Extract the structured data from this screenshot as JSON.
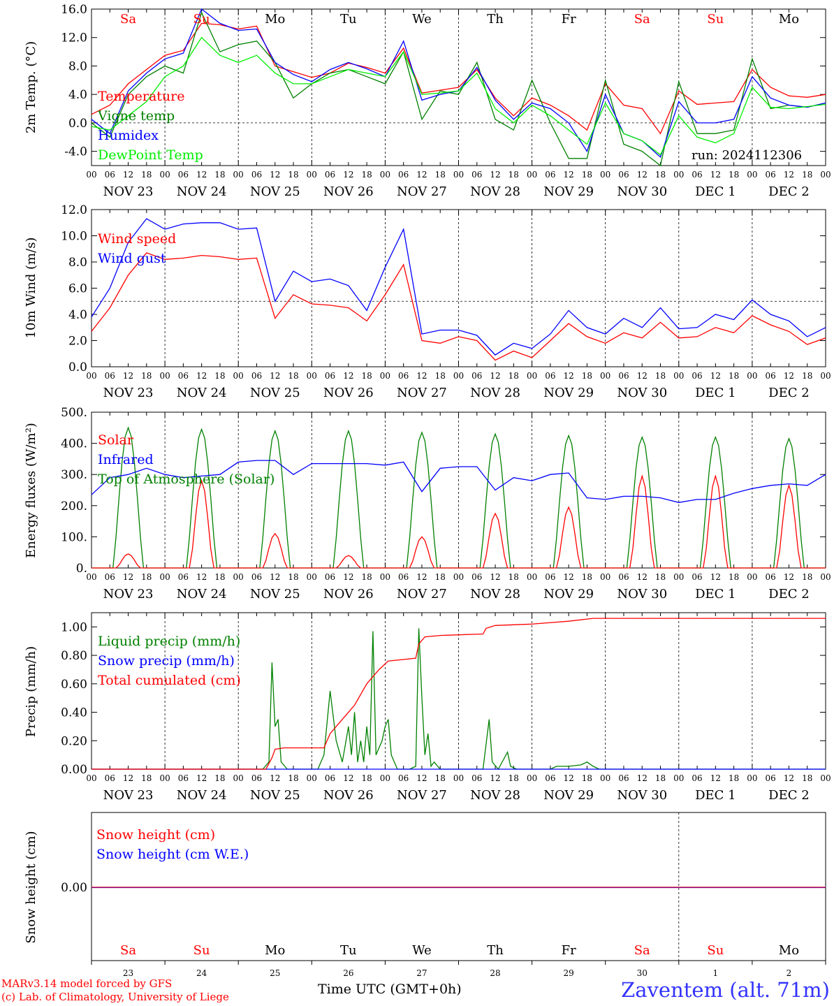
{
  "chart_data": [
    {
      "type": "line",
      "ylabel": "2m Temp. (°C)",
      "yticks": [
        "16.0",
        "12.0",
        "8.0",
        "4.0",
        "0.0",
        "-4.0"
      ],
      "ylim": [
        -6,
        16
      ],
      "ref_line": 0,
      "legend": [
        "Temperature",
        "Vigne temp",
        "Humidex",
        "DewPoint Temp"
      ],
      "annotation": "run: 2024112306",
      "day_labels": [
        "Sa",
        "Su",
        "Mo",
        "Tu",
        "We",
        "Th",
        "Fr",
        "Sa",
        "Su",
        "Mo"
      ],
      "x_hours": [
        0,
        6,
        12,
        18,
        24,
        30,
        36,
        42,
        48,
        54,
        60,
        66,
        72,
        78,
        84,
        90,
        96,
        102,
        108,
        114,
        120,
        126,
        132,
        138,
        144,
        150,
        156,
        162,
        168,
        174,
        180,
        186,
        192,
        198,
        204,
        210,
        216,
        222,
        228,
        234,
        240
      ],
      "series": [
        {
          "name": "Temperature",
          "color": "#ff0000",
          "values": [
            1.2,
            2.5,
            5.5,
            7.5,
            9.5,
            10.2,
            14.0,
            13.8,
            13.2,
            13.6,
            8.0,
            7.2,
            6.4,
            7.0,
            8.4,
            7.8,
            7.0,
            10.5,
            4.2,
            4.6,
            5.0,
            7.5,
            3.5,
            1.0,
            3.5,
            2.5,
            1.0,
            -1.0,
            5.5,
            2.5,
            2.0,
            -1.5,
            4.5,
            2.6,
            2.8,
            3.0,
            7.5,
            5.0,
            3.8,
            3.6,
            4.0
          ]
        },
        {
          "name": "Vigne temp",
          "color": "#008000",
          "values": [
            0.0,
            -2.0,
            4.0,
            6.5,
            8.0,
            7.0,
            15.5,
            10.0,
            11.0,
            11.5,
            8.5,
            3.5,
            5.5,
            7.0,
            7.5,
            6.5,
            5.5,
            10.0,
            0.5,
            4.5,
            4.0,
            8.5,
            0.5,
            -1.0,
            6.0,
            0.0,
            -5.0,
            -5.0,
            6.0,
            -3.0,
            -4.0,
            -6.0,
            5.8,
            -1.5,
            -1.5,
            -1.0,
            9.0,
            2.0,
            2.5,
            2.2,
            2.8
          ]
        },
        {
          "name": "Humidex",
          "color": "#0000ff",
          "values": [
            0.5,
            -1.5,
            4.5,
            7.0,
            9.0,
            9.8,
            16.0,
            14.0,
            13.0,
            13.2,
            8.5,
            6.8,
            5.8,
            7.5,
            8.5,
            7.6,
            6.5,
            11.5,
            3.2,
            4.0,
            4.5,
            7.8,
            3.2,
            0.5,
            2.8,
            2.0,
            0.0,
            -4.0,
            4.0,
            -1.5,
            -2.5,
            -4.8,
            3.0,
            0.0,
            0.0,
            0.5,
            6.5,
            3.5,
            2.5,
            2.2,
            2.8
          ]
        },
        {
          "name": "DewPoint Temp",
          "color": "#00ee00",
          "values": [
            -0.5,
            -1.0,
            1.0,
            3.0,
            6.5,
            8.0,
            12.0,
            9.5,
            8.5,
            9.5,
            7.0,
            5.5,
            5.5,
            6.5,
            7.5,
            7.0,
            6.5,
            10.0,
            4.0,
            4.2,
            4.5,
            7.0,
            2.0,
            0.0,
            2.5,
            1.0,
            -1.0,
            -3.0,
            2.8,
            -1.5,
            -2.5,
            -4.5,
            1.0,
            -2.0,
            -2.8,
            -1.5,
            5.0,
            2.2,
            2.0,
            2.3,
            2.6
          ]
        }
      ]
    },
    {
      "type": "line",
      "ylabel": "10m Wind (m/s)",
      "yticks": [
        "12.0",
        "10.0",
        "8.0",
        "6.0",
        "4.0",
        "2.0",
        "0.0"
      ],
      "ylim": [
        0,
        12
      ],
      "ref_line": 5,
      "legend": [
        "Wind speed",
        "Wind gust"
      ],
      "x_hours": [
        0,
        6,
        12,
        18,
        24,
        30,
        36,
        42,
        48,
        54,
        60,
        66,
        72,
        78,
        84,
        90,
        96,
        102,
        108,
        114,
        120,
        126,
        132,
        138,
        144,
        150,
        156,
        162,
        168,
        174,
        180,
        186,
        192,
        198,
        204,
        210,
        216,
        222,
        228,
        234,
        240
      ],
      "series": [
        {
          "name": "Wind speed",
          "color": "#ff0000",
          "values": [
            2.7,
            4.5,
            7.0,
            8.7,
            8.2,
            8.3,
            8.5,
            8.4,
            8.2,
            8.3,
            3.7,
            5.5,
            4.8,
            4.7,
            4.5,
            3.5,
            5.5,
            7.8,
            2.0,
            1.8,
            2.3,
            2.0,
            0.5,
            1.2,
            0.7,
            2.0,
            3.3,
            2.3,
            1.8,
            2.6,
            2.2,
            3.4,
            2.2,
            2.3,
            3.0,
            2.6,
            3.9,
            3.2,
            2.7,
            1.7,
            2.2
          ]
        },
        {
          "name": "Wind gust",
          "color": "#0000ff",
          "values": [
            3.8,
            6.0,
            9.5,
            11.3,
            10.5,
            10.9,
            11.0,
            11.0,
            10.5,
            10.6,
            5.0,
            7.3,
            6.5,
            6.7,
            6.2,
            4.3,
            7.6,
            10.5,
            2.5,
            2.8,
            2.8,
            2.4,
            0.9,
            1.8,
            1.4,
            2.5,
            4.3,
            3.0,
            2.5,
            3.7,
            3.0,
            4.5,
            2.9,
            3.0,
            4.0,
            3.6,
            5.1,
            4.0,
            3.5,
            2.3,
            3.0
          ]
        }
      ]
    },
    {
      "type": "line",
      "ylabel": "Energy fluxes (W/m²)",
      "yticks": [
        "500.",
        "400.",
        "300.",
        "200.",
        "100.",
        "0."
      ],
      "ylim": [
        0,
        500
      ],
      "legend": [
        "Solar",
        "Infrared",
        "Top of Atmosphere (Solar)"
      ],
      "days": 10,
      "daily_solar_peak": [
        45,
        280,
        110,
        40,
        100,
        175,
        195,
        295,
        295,
        265
      ],
      "daily_toa_peak": [
        450,
        445,
        440,
        440,
        435,
        430,
        425,
        420,
        420,
        415
      ],
      "infrared": {
        "name": "Infrared",
        "color": "#0000ff",
        "x_hours": [
          0,
          6,
          12,
          18,
          24,
          30,
          36,
          42,
          48,
          54,
          60,
          66,
          72,
          78,
          84,
          90,
          96,
          102,
          108,
          114,
          120,
          126,
          132,
          138,
          144,
          150,
          156,
          162,
          168,
          174,
          180,
          186,
          192,
          198,
          204,
          210,
          216,
          222,
          228,
          234,
          240
        ],
        "values": [
          235,
          290,
          300,
          320,
          300,
          290,
          295,
          300,
          340,
          345,
          345,
          300,
          335,
          335,
          335,
          335,
          330,
          340,
          245,
          320,
          325,
          325,
          250,
          290,
          280,
          300,
          305,
          225,
          220,
          230,
          230,
          225,
          210,
          220,
          220,
          240,
          255,
          265,
          270,
          265,
          300
        ]
      },
      "series_colors": {
        "solar": "#ff0000",
        "toa": "#008000"
      }
    },
    {
      "type": "line",
      "ylabel": "Precip (mm/h)",
      "yticks": [
        "1.00",
        "0.80",
        "0.60",
        "0.40",
        "0.20",
        "0.00"
      ],
      "ylim": [
        0,
        1.1
      ],
      "legend": [
        "Liquid precip (mm/h)",
        "Snow precip (mm/h)",
        "Total cumulated (cm)"
      ],
      "liquid": {
        "name": "Liquid precip (mm/h)",
        "color": "#008000",
        "points": [
          [
            0,
            0
          ],
          [
            56,
            0
          ],
          [
            58,
            0.05
          ],
          [
            59,
            0.75
          ],
          [
            60,
            0.3
          ],
          [
            61,
            0.35
          ],
          [
            62,
            0.05
          ],
          [
            64,
            0
          ],
          [
            74,
            0
          ],
          [
            76,
            0.1
          ],
          [
            78,
            0.55
          ],
          [
            80,
            0.2
          ],
          [
            82,
            0.05
          ],
          [
            84,
            0.3
          ],
          [
            85,
            0.1
          ],
          [
            86,
            0.4
          ],
          [
            87,
            0.05
          ],
          [
            88,
            0.2
          ],
          [
            89,
            0.05
          ],
          [
            90,
            0.3
          ],
          [
            91,
            0.1
          ],
          [
            92,
            0.97
          ],
          [
            93,
            0.1
          ],
          [
            94,
            0.15
          ],
          [
            95,
            0.2
          ],
          [
            96,
            0.3
          ],
          [
            97,
            0.35
          ],
          [
            98,
            0.1
          ],
          [
            99,
            0.05
          ],
          [
            100,
            0.0
          ],
          [
            104,
            0.0
          ],
          [
            106,
            0.02
          ],
          [
            107,
            0.99
          ],
          [
            108,
            0.5
          ],
          [
            109,
            0.1
          ],
          [
            110,
            0.25
          ],
          [
            111,
            0.02
          ],
          [
            112,
            0.05
          ],
          [
            114,
            0.0
          ],
          [
            128,
            0.0
          ],
          [
            130,
            0.35
          ],
          [
            131,
            0.05
          ],
          [
            133,
            0.0
          ],
          [
            136,
            0.12
          ],
          [
            137,
            0.02
          ],
          [
            139,
            0.0
          ],
          [
            150,
            0.0
          ],
          [
            152,
            0.02
          ],
          [
            156,
            0.02
          ],
          [
            160,
            0.03
          ],
          [
            162,
            0.05
          ],
          [
            164,
            0.02
          ],
          [
            166,
            0.0
          ],
          [
            240,
            0.0
          ]
        ]
      },
      "cumulated": {
        "name": "Total cumulated (cm)",
        "color": "#ff0000",
        "points": [
          [
            0,
            0
          ],
          [
            57,
            0
          ],
          [
            59,
            0.08
          ],
          [
            60,
            0.14
          ],
          [
            63,
            0.15
          ],
          [
            76,
            0.15
          ],
          [
            78,
            0.25
          ],
          [
            82,
            0.35
          ],
          [
            86,
            0.45
          ],
          [
            90,
            0.6
          ],
          [
            92,
            0.65
          ],
          [
            94,
            0.7
          ],
          [
            97,
            0.76
          ],
          [
            106,
            0.78
          ],
          [
            107,
            0.88
          ],
          [
            109,
            0.93
          ],
          [
            114,
            0.94
          ],
          [
            128,
            0.95
          ],
          [
            129,
            0.99
          ],
          [
            132,
            1.01
          ],
          [
            144,
            1.02
          ],
          [
            156,
            1.04
          ],
          [
            164,
            1.06
          ],
          [
            240,
            1.06
          ]
        ]
      },
      "snow": {
        "name": "Snow precip (mm/h)",
        "color": "#0000ff",
        "value": 0
      }
    },
    {
      "type": "line",
      "ylabel": "Snow height (cm)",
      "yticks": [
        "0.00"
      ],
      "legend": [
        "Snow height (cm)",
        "Snow height (cm W.E.)"
      ],
      "series": [
        {
          "name": "Snow height (cm)",
          "color": "#ff0000",
          "values": [
            0,
            0
          ]
        },
        {
          "name": "Snow height (cm W.E.)",
          "color": "#0000ff",
          "values": [
            0,
            0
          ]
        }
      ],
      "day_labels": [
        "Sa",
        "Su",
        "Mo",
        "Tu",
        "We",
        "Th",
        "Fr",
        "Sa",
        "Su",
        "Mo"
      ],
      "day_numbers": [
        "23",
        "24",
        "25",
        "26",
        "27",
        "28",
        "29",
        "30",
        "1",
        "2"
      ]
    }
  ],
  "hour_ticks": [
    "00",
    "06",
    "12",
    "18"
  ],
  "date_labels": [
    "NOV 23",
    "NOV 24",
    "NOV 25",
    "NOV 26",
    "NOV 27",
    "NOV 28",
    "NOV 29",
    "NOV 30",
    "DEC  1",
    "DEC  2"
  ],
  "weekend_days": [
    0,
    1,
    7,
    8
  ],
  "xlabel": "Time UTC (GMT+0h)",
  "credits": {
    "line1": "MARv3.14 model forced by GFS",
    "line2": "(c) Lab. of Climatology, University of Liege"
  },
  "station": "Zaventem (alt. 71m)"
}
